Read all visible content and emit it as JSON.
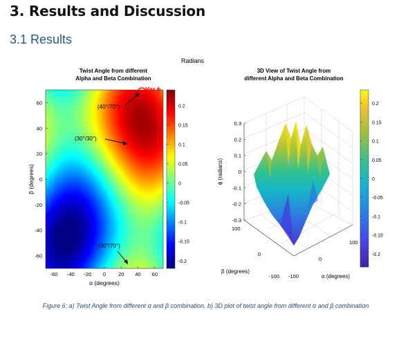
{
  "section_heading": "3. Results and Discussion",
  "subsection_heading": "3.1 Results",
  "units_label": "Radians",
  "caption": "Figure 6: a) Twist Angle from different α and β combination. b) 3D plot of twist angle from different α and β combination",
  "colors": {
    "heading": "#111111",
    "subheading": "#1f5a8a",
    "caption": "#1f4e79",
    "annotation": "#ff0000"
  },
  "chart_data": [
    {
      "type": "heatmap",
      "title_line1": "Twist Angle from different",
      "title_line2": "Alpha and Beta Combination",
      "xlabel": "α (degrees)",
      "ylabel": "β (degrees)",
      "xlim": [
        -70,
        70
      ],
      "ylim": [
        -70,
        70
      ],
      "x_ticks": [
        "-60",
        "-40",
        "-20",
        "0",
        "20",
        "40",
        "60"
      ],
      "y_ticks": [
        "60",
        "40",
        "20",
        "0",
        "-20",
        "-40",
        "-60"
      ],
      "colorbar_ticks": [
        "0.2",
        "0.15",
        "0.1",
        "0.05",
        "0",
        "-0.05",
        "-0.1",
        "-0.15",
        "-0.2"
      ],
      "colorbar_range": [
        -0.22,
        0.24
      ],
      "colormap": "jet",
      "annotations": [
        {
          "text": "(40°/70°)",
          "x": 40,
          "y": 70
        },
        {
          "text": "(30°/30°)",
          "x": 30,
          "y": 30
        },
        {
          "text": "(30°/70°)",
          "x": 30,
          "y": -70
        }
      ],
      "max_label": "Max ϕ"
    },
    {
      "type": "surface",
      "title_line1": "3D View of Twist Angle from",
      "title_line2": "different Alpha and Beta Combination",
      "zlabel": "ϕ (radians)",
      "xlabel": "α (degrees)",
      "ylabel": "β (degrees)",
      "z_ticks": [
        "0.3",
        "0.2",
        "0.1",
        "0",
        "-0.1",
        "-0.2",
        "-0.3"
      ],
      "x_ticks": [
        "-100",
        "0",
        "100"
      ],
      "y_ticks": [
        "100",
        "0",
        "-100"
      ],
      "colorbar_ticks": [
        "0.2",
        "0.15",
        "0.1",
        "0.05",
        "0",
        "-0.05",
        "-0.1",
        "-0.15",
        "-0.2"
      ],
      "colormap": "parula"
    }
  ]
}
